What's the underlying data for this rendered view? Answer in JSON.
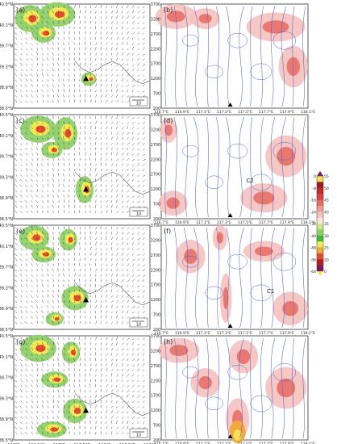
{
  "figure": {
    "panels_left": [
      {
        "letter": "(a)",
        "vector_ref": "10"
      },
      {
        "letter": "(c)",
        "vector_ref": "10"
      },
      {
        "letter": "(e)",
        "vector_ref": "10"
      },
      {
        "letter": "(g)",
        "vector_ref": "10"
      }
    ],
    "panels_right": [
      {
        "letter": "(b)"
      },
      {
        "letter": "(d)",
        "annotation": "C2"
      },
      {
        "letter": "(f)",
        "annotation": "C1"
      },
      {
        "letter": "(h)"
      }
    ],
    "left_yticks": [
      "40.5°N",
      "40.1°N",
      "39.7°N",
      "39.3°N",
      "38.9°N",
      "38.5°N"
    ],
    "left_xticks": [
      "116°E",
      "116.5°E",
      "117°E",
      "117.5°E",
      "118°E",
      "118.5°E",
      "119°E"
    ],
    "right_yticks": [
      "3700",
      "3200",
      "2700",
      "2200",
      "1700",
      "1200",
      "700",
      "200"
    ],
    "right_xticks": [
      "116.7°E",
      "116.9°E",
      "117.1°E",
      "117.3°E",
      "117.5°E",
      "117.7°E",
      "117.9°E",
      "118.1°E"
    ],
    "colorbar": {
      "labels": [
        "-64",
        "-56",
        "-48",
        "-40",
        "-32",
        "-24",
        "-16",
        "-8",
        "0",
        "20",
        "25",
        "30",
        "35",
        "40",
        "45",
        "50",
        "55"
      ],
      "colors_pos": [
        "#f6f0d8",
        "#cfe88a",
        "#8fd06a",
        "#45b83a",
        "#f4ea55",
        "#f2a83a",
        "#e64a2e",
        "#b21d22",
        "#7a1b5b"
      ],
      "colors_neg": [
        "#fbe3df",
        "#f6c1bc",
        "#ef9990",
        "#e66b61",
        "#d9413a",
        "#c3282a",
        "#9e1a1c",
        "#f5e05a"
      ]
    }
  }
}
